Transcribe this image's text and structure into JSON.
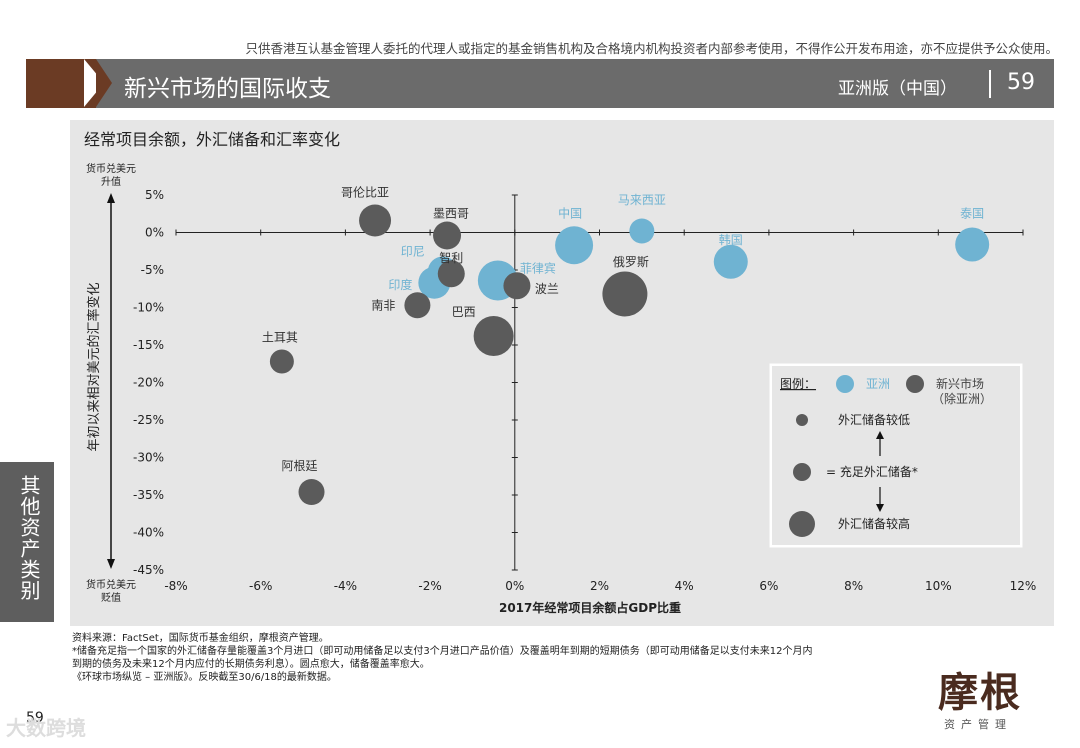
{
  "header": {
    "disclaimer": "只供香港互认基金管理人委托的代理人或指定的基金销售机构及合格境内机构投资者内部参考使用，不得作公开发布用途，亦不应提供予公众使用。",
    "title": "新兴市场的国际收支",
    "edition": "亚洲版（中国）",
    "page": "59"
  },
  "sidebar": {
    "label": "其他资产类别"
  },
  "chart_data": {
    "type": "scatter",
    "title": "经常项目余额，外汇储备和汇率变化",
    "xlabel": "2017年经常项目余额占GDP比重",
    "ylabel": "年初以来相对美元的汇率变化",
    "y_top_label_1": "货币兑美元",
    "y_top_label_2": "升值",
    "y_bottom_label_1": "货币兑美元",
    "y_bottom_label_2": "贬值",
    "xlim": [
      -8,
      12
    ],
    "ylim": [
      -45,
      5
    ],
    "x_ticks": [
      -8,
      -6,
      -4,
      -2,
      0,
      2,
      4,
      6,
      8,
      10,
      12
    ],
    "x_tick_labels": [
      "-8%",
      "-6%",
      "-4%",
      "-2%",
      "0%",
      "2%",
      "4%",
      "6%",
      "8%",
      "10%",
      "12%"
    ],
    "y_ticks": [
      5,
      0,
      -5,
      -10,
      -15,
      -20,
      -25,
      -30,
      -35,
      -40,
      -45
    ],
    "y_tick_labels": [
      "5%",
      "0%",
      "-5%",
      "-10%",
      "-15%",
      "-20%",
      "-25%",
      "-30%",
      "-35%",
      "-40%",
      "-45%"
    ],
    "series": [
      {
        "name": "亚洲",
        "color": "#6fb3d2",
        "points": [
          {
            "label": "中国",
            "x": 1.4,
            "y": -1.7,
            "size": 1.2
          },
          {
            "label": "马来西亚",
            "x": 3.0,
            "y": 0.2,
            "size": 0.55
          },
          {
            "label": "泰国",
            "x": 10.8,
            "y": -1.6,
            "size": 1.0
          },
          {
            "label": "韩国",
            "x": 5.1,
            "y": -3.9,
            "size": 1.0
          },
          {
            "label": "印尼",
            "x": -1.7,
            "y": -5.2,
            "size": 0.8
          },
          {
            "label": "印度",
            "x": -1.9,
            "y": -6.7,
            "size": 0.9
          },
          {
            "label": "菲律宾",
            "x": -0.4,
            "y": -6.4,
            "size": 1.3
          }
        ]
      },
      {
        "name": "新兴市场（除亚洲）",
        "color": "#5b5b5b",
        "points": [
          {
            "label": "哥伦比亚",
            "x": -3.3,
            "y": 1.6,
            "size": 0.9
          },
          {
            "label": "墨西哥",
            "x": -1.6,
            "y": -0.4,
            "size": 0.7
          },
          {
            "label": "智利",
            "x": -1.5,
            "y": -5.5,
            "size": 0.65
          },
          {
            "label": "波兰",
            "x": 0.05,
            "y": -7.1,
            "size": 0.65
          },
          {
            "label": "俄罗斯",
            "x": 2.6,
            "y": -8.2,
            "size": 1.55
          },
          {
            "label": "南非",
            "x": -2.3,
            "y": -9.7,
            "size": 0.6
          },
          {
            "label": "巴西",
            "x": -0.5,
            "y": -13.8,
            "size": 1.3
          },
          {
            "label": "土耳其",
            "x": -5.5,
            "y": -17.2,
            "size": 0.5
          },
          {
            "label": "阿根廷",
            "x": -4.8,
            "y": -34.6,
            "size": 0.6
          }
        ]
      }
    ],
    "legend": {
      "title": "图例：",
      "asia": "亚洲",
      "em_line1": "新兴市场",
      "em_line2": "（除亚洲）",
      "low": "外汇储备较低",
      "adequate": "= 充足外汇储备*",
      "high": "外汇储备较高",
      "position": "bottom-right"
    }
  },
  "footnotes": {
    "line1": "资料来源：FactSet，国际货币基金组织，摩根资产管理。",
    "line2": "*储备充足指一个国家的外汇储备存量能覆盖3个月进口（即可动用储备足以支付3个月进口产品价值）及覆盖明年到期的短期债务（即可动用储备足以支付未来12个月内",
    "line3": "到期的债务及未来12个月内应付的长期债务利息）。圆点愈大，储备覆盖率愈大。",
    "line4": "《环球市场纵览 – 亚洲版》。反映截至30/6/18的最新数据。"
  },
  "footer": {
    "page": "59",
    "logo": "摩根",
    "logo_sub": "资产管理",
    "watermark": "大数跨境"
  }
}
